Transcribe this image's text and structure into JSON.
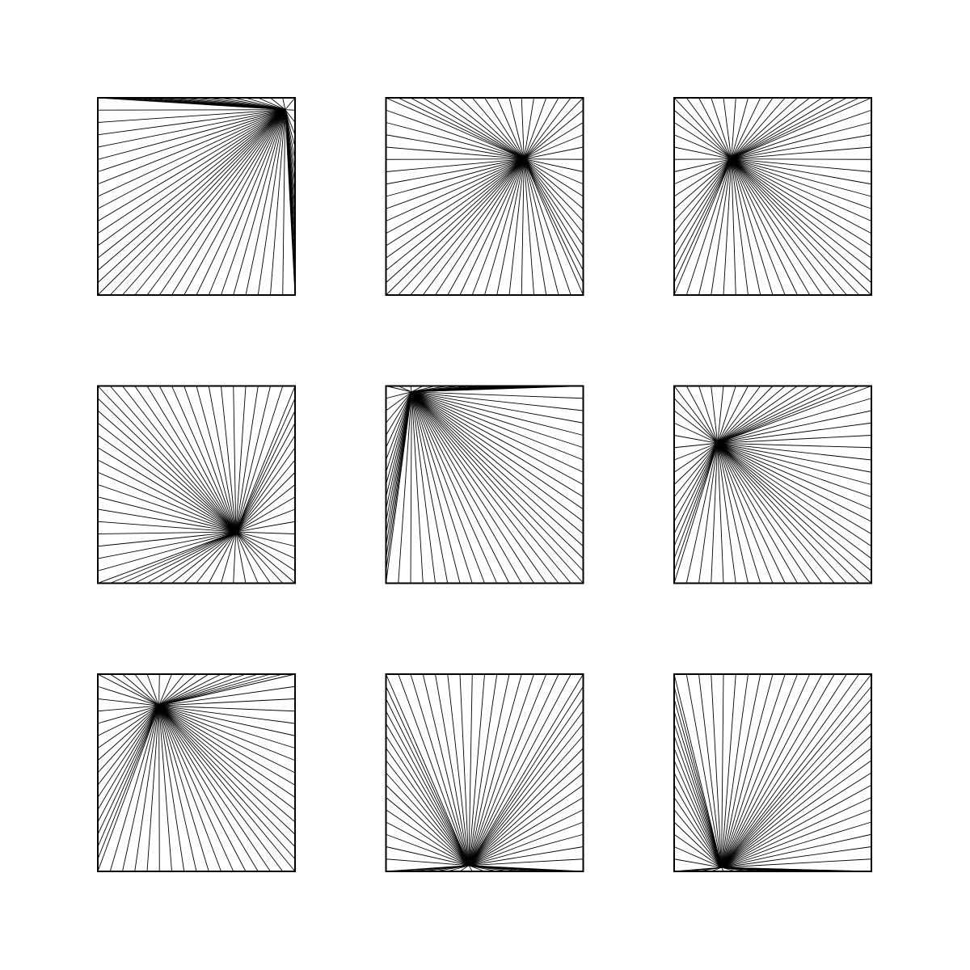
{
  "artwork": {
    "background_color": "#ffffff",
    "stroke_color": "#000000",
    "grid": {
      "rows": 3,
      "cols": 3
    },
    "rays_per_edge": 16,
    "panels": [
      {
        "id": "panel-1",
        "focal_point": [
          0.95,
          0.94
        ]
      },
      {
        "id": "panel-2",
        "focal_point": [
          0.7,
          0.69
        ]
      },
      {
        "id": "panel-3",
        "focal_point": [
          0.29,
          0.69
        ]
      },
      {
        "id": "panel-4",
        "focal_point": [
          0.7,
          0.26
        ]
      },
      {
        "id": "panel-5",
        "focal_point": [
          0.13,
          0.97
        ]
      },
      {
        "id": "panel-6",
        "focal_point": [
          0.22,
          0.71
        ]
      },
      {
        "id": "panel-7",
        "focal_point": [
          0.31,
          0.84
        ]
      },
      {
        "id": "panel-8",
        "focal_point": [
          0.42,
          0.03
        ]
      },
      {
        "id": "panel-9",
        "focal_point": [
          0.24,
          0.02
        ]
      }
    ]
  }
}
